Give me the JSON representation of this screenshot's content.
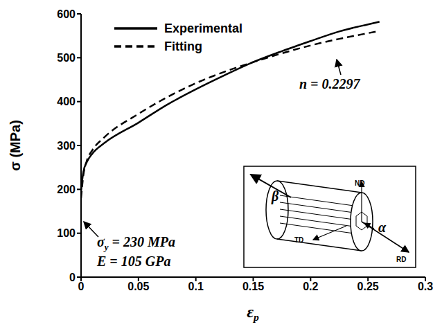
{
  "chart_data": {
    "type": "line",
    "x_label": "εp",
    "x_label_subscript": "p",
    "y_label": "σ (MPa)",
    "x": [
      0,
      0.002,
      0.005,
      0.01,
      0.02,
      0.05,
      0.075,
      0.1,
      0.125,
      0.15,
      0.175,
      0.2,
      0.225,
      0.25,
      0.26
    ],
    "series": [
      {
        "name": "Experimental",
        "color": "#000000",
        "line_style": "solid",
        "values": [
          195,
          240,
          262,
          282,
          305,
          352,
          393,
          428,
          460,
          490,
          515,
          538,
          560,
          576,
          582
        ]
      },
      {
        "name": "Fitting",
        "color": "#000000",
        "line_style": "dashed",
        "values": [
          180,
          232,
          265,
          290,
          318,
          372,
          410,
          442,
          468,
          490,
          510,
          528,
          543,
          556,
          561
        ]
      }
    ],
    "xlim": [
      0,
      0.3
    ],
    "xticks": [
      0,
      0.05,
      0.1,
      0.15,
      0.2,
      0.25,
      0.3
    ],
    "ylim": [
      0,
      600
    ],
    "yticks": [
      0,
      100,
      200,
      300,
      400,
      500,
      600
    ],
    "grid": false,
    "legend": "top-left",
    "annotations": [
      {
        "text": "n = 0.2297"
      },
      {
        "text": "σy = 230 MPa",
        "subscript": "y"
      },
      {
        "text": "E = 105 GPa"
      }
    ],
    "inset": {
      "labels": [
        "β",
        "α",
        "ND",
        "TD",
        "RD"
      ]
    }
  }
}
